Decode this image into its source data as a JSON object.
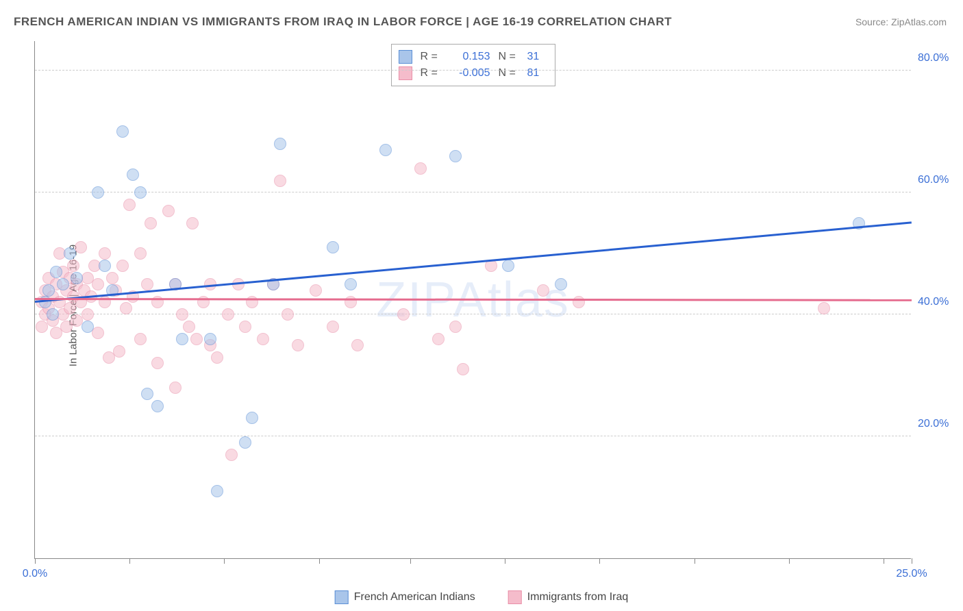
{
  "title": "FRENCH AMERICAN INDIAN VS IMMIGRANTS FROM IRAQ IN LABOR FORCE | AGE 16-19 CORRELATION CHART",
  "source": "Source: ZipAtlas.com",
  "ylabel": "In Labor Force | Age 16-19",
  "watermark": "ZIPAtlas",
  "chart": {
    "type": "scatter",
    "xlim": [
      0,
      25
    ],
    "ylim": [
      0,
      85
    ],
    "xticks": [
      0,
      2.7,
      5.4,
      8.1,
      10.7,
      13.4,
      16.1,
      18.8,
      21.5,
      24.2,
      25
    ],
    "xtick_labels": {
      "0": "0.0%",
      "25": "25.0%"
    },
    "yticks": [
      20,
      40,
      60,
      80
    ],
    "ytick_labels": [
      "20.0%",
      "40.0%",
      "60.0%",
      "80.0%"
    ],
    "grid_color": "#cccccc",
    "axis_color": "#888888",
    "background_color": "#ffffff"
  },
  "series": [
    {
      "name": "French American Indians",
      "key": "blue",
      "fill": "#a9c5ea",
      "stroke": "#5b8fd6",
      "line_color": "#2860d0",
      "r": "0.153",
      "n": "31",
      "trend": {
        "x1": 0,
        "y1": 42,
        "x2": 25,
        "y2": 55
      },
      "points": [
        [
          0.3,
          42
        ],
        [
          0.4,
          44
        ],
        [
          0.5,
          40
        ],
        [
          0.6,
          47
        ],
        [
          0.8,
          45
        ],
        [
          1.0,
          50
        ],
        [
          1.2,
          46
        ],
        [
          1.5,
          38
        ],
        [
          1.8,
          60
        ],
        [
          2.0,
          48
        ],
        [
          2.2,
          44
        ],
        [
          2.5,
          70
        ],
        [
          2.8,
          63
        ],
        [
          3.0,
          60
        ],
        [
          3.2,
          27
        ],
        [
          3.5,
          25
        ],
        [
          4.0,
          45
        ],
        [
          4.2,
          36
        ],
        [
          5.0,
          36
        ],
        [
          5.2,
          11
        ],
        [
          6.0,
          19
        ],
        [
          6.2,
          23
        ],
        [
          6.8,
          45
        ],
        [
          7.0,
          68
        ],
        [
          8.5,
          51
        ],
        [
          9.0,
          45
        ],
        [
          10.0,
          67
        ],
        [
          12.0,
          66
        ],
        [
          13.5,
          48
        ],
        [
          15.0,
          45
        ],
        [
          23.5,
          55
        ]
      ]
    },
    {
      "name": "Immigrants from Iraq",
      "key": "pink",
      "fill": "#f5bccb",
      "stroke": "#e98fa8",
      "line_color": "#e56b8e",
      "r": "-0.005",
      "n": "81",
      "trend": {
        "x1": 0,
        "y1": 42.5,
        "x2": 25,
        "y2": 42.3
      },
      "points": [
        [
          0.2,
          38
        ],
        [
          0.2,
          42
        ],
        [
          0.3,
          40
        ],
        [
          0.3,
          44
        ],
        [
          0.4,
          46
        ],
        [
          0.4,
          41
        ],
        [
          0.5,
          39
        ],
        [
          0.5,
          43
        ],
        [
          0.6,
          45
        ],
        [
          0.6,
          37
        ],
        [
          0.7,
          50
        ],
        [
          0.7,
          42
        ],
        [
          0.8,
          47
        ],
        [
          0.8,
          40
        ],
        [
          0.9,
          44
        ],
        [
          0.9,
          38
        ],
        [
          1.0,
          46
        ],
        [
          1.0,
          41
        ],
        [
          1.1,
          43
        ],
        [
          1.1,
          48
        ],
        [
          1.2,
          45
        ],
        [
          1.2,
          39
        ],
        [
          1.3,
          42
        ],
        [
          1.3,
          51
        ],
        [
          1.4,
          44
        ],
        [
          1.5,
          46
        ],
        [
          1.5,
          40
        ],
        [
          1.6,
          43
        ],
        [
          1.7,
          48
        ],
        [
          1.8,
          45
        ],
        [
          1.8,
          37
        ],
        [
          2.0,
          50
        ],
        [
          2.0,
          42
        ],
        [
          2.1,
          33
        ],
        [
          2.2,
          46
        ],
        [
          2.3,
          44
        ],
        [
          2.4,
          34
        ],
        [
          2.5,
          48
        ],
        [
          2.6,
          41
        ],
        [
          2.7,
          58
        ],
        [
          2.8,
          43
        ],
        [
          3.0,
          50
        ],
        [
          3.0,
          36
        ],
        [
          3.2,
          45
        ],
        [
          3.3,
          55
        ],
        [
          3.5,
          42
        ],
        [
          3.5,
          32
        ],
        [
          3.8,
          57
        ],
        [
          4.0,
          45
        ],
        [
          4.0,
          28
        ],
        [
          4.2,
          40
        ],
        [
          4.4,
          38
        ],
        [
          4.5,
          55
        ],
        [
          4.6,
          36
        ],
        [
          4.8,
          42
        ],
        [
          5.0,
          45
        ],
        [
          5.0,
          35
        ],
        [
          5.2,
          33
        ],
        [
          5.5,
          40
        ],
        [
          5.6,
          17
        ],
        [
          5.8,
          45
        ],
        [
          6.0,
          38
        ],
        [
          6.2,
          42
        ],
        [
          6.5,
          36
        ],
        [
          6.8,
          45
        ],
        [
          7.0,
          62
        ],
        [
          7.2,
          40
        ],
        [
          7.5,
          35
        ],
        [
          8.0,
          44
        ],
        [
          8.5,
          38
        ],
        [
          9.0,
          42
        ],
        [
          9.2,
          35
        ],
        [
          10.5,
          40
        ],
        [
          11.0,
          64
        ],
        [
          11.5,
          36
        ],
        [
          12.0,
          38
        ],
        [
          12.2,
          31
        ],
        [
          13.0,
          48
        ],
        [
          14.5,
          44
        ],
        [
          15.5,
          42
        ],
        [
          22.5,
          41
        ]
      ]
    }
  ],
  "legend_bottom": [
    {
      "label": "French American Indians",
      "fill": "#a9c5ea",
      "stroke": "#5b8fd6"
    },
    {
      "label": "Immigrants from Iraq",
      "fill": "#f5bccb",
      "stroke": "#e98fa8"
    }
  ]
}
